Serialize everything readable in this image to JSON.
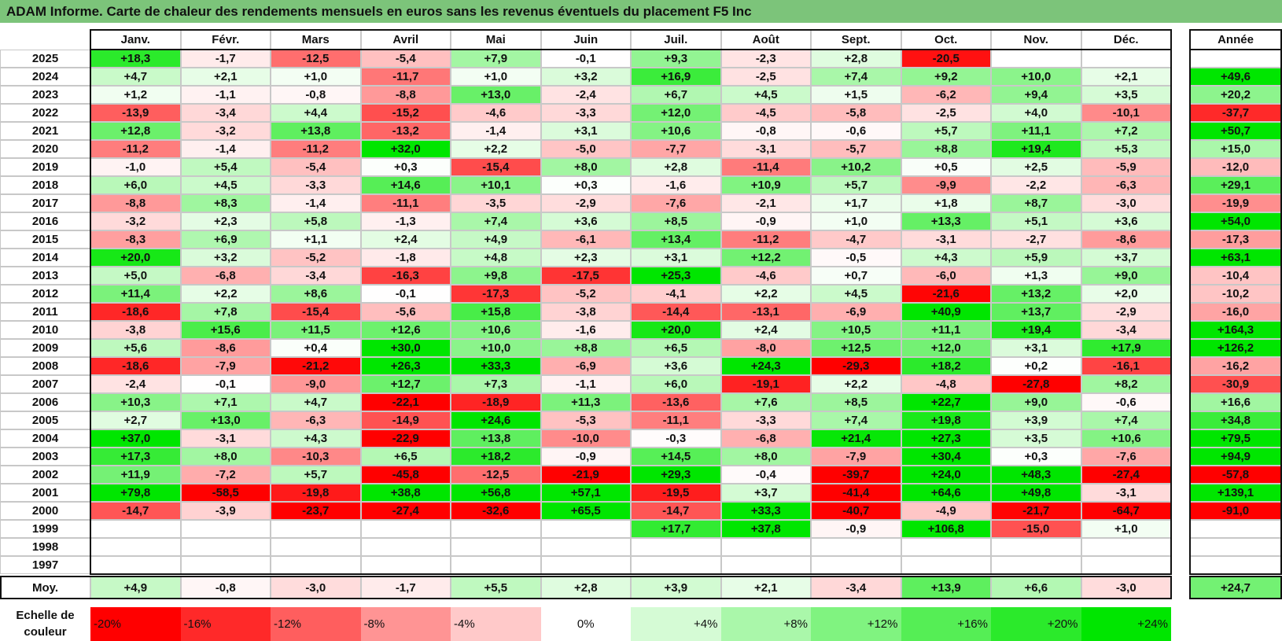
{
  "chart_data": {
    "type": "heatmap",
    "title": "ADAM Informe. Carte de chaleur des rendements mensuels en euros sans les revenus éventuels du placement F5 Inc",
    "columns": [
      "Janv.",
      "Févr.",
      "Mars",
      "Avril",
      "Mai",
      "Juin",
      "Juil.",
      "Août",
      "Sept.",
      "Oct.",
      "Nov.",
      "Déc."
    ],
    "annual_header": "Année",
    "rows": [
      {
        "year": "2025",
        "values": [
          "+18,3",
          "-1,7",
          "-12,5",
          "-5,4",
          "+7,9",
          "-0,1",
          "+9,3",
          "-2,3",
          "+2,8",
          "-20,5",
          "",
          ""
        ],
        "annual": ""
      },
      {
        "year": "2024",
        "values": [
          "+4,7",
          "+2,1",
          "+1,0",
          "-11,7",
          "+1,0",
          "+3,2",
          "+16,9",
          "-2,5",
          "+7,4",
          "+9,2",
          "+10,0",
          "+2,1"
        ],
        "annual": "+49,6"
      },
      {
        "year": "2023",
        "values": [
          "+1,2",
          "-1,1",
          "-0,8",
          "-8,8",
          "+13,0",
          "-2,4",
          "+6,7",
          "+4,5",
          "+1,5",
          "-6,2",
          "+9,4",
          "+3,5"
        ],
        "annual": "+20,2"
      },
      {
        "year": "2022",
        "values": [
          "-13,9",
          "-3,4",
          "+4,4",
          "-15,2",
          "-4,6",
          "-3,3",
          "+12,0",
          "-4,5",
          "-5,8",
          "-2,5",
          "+4,0",
          "-10,1"
        ],
        "annual": "-37,7"
      },
      {
        "year": "2021",
        "values": [
          "+12,8",
          "-3,2",
          "+13,8",
          "-13,2",
          "-1,4",
          "+3,1",
          "+10,6",
          "-0,8",
          "-0,6",
          "+5,7",
          "+11,1",
          "+7,2"
        ],
        "annual": "+50,7"
      },
      {
        "year": "2020",
        "values": [
          "-11,2",
          "-1,4",
          "-11,2",
          "+32,0",
          "+2,2",
          "-5,0",
          "-7,7",
          "-3,1",
          "-5,7",
          "+8,8",
          "+19,4",
          "+5,3"
        ],
        "annual": "+15,0"
      },
      {
        "year": "2019",
        "values": [
          "-1,0",
          "+5,4",
          "-5,4",
          "+0,3",
          "-15,4",
          "+8,0",
          "+2,8",
          "-11,4",
          "+10,2",
          "+0,5",
          "+2,5",
          "-5,9"
        ],
        "annual": "-12,0"
      },
      {
        "year": "2018",
        "values": [
          "+6,0",
          "+4,5",
          "-3,3",
          "+14,6",
          "+10,1",
          "+0,3",
          "-1,6",
          "+10,9",
          "+5,7",
          "-9,9",
          "-2,2",
          "-6,3"
        ],
        "annual": "+29,1"
      },
      {
        "year": "2017",
        "values": [
          "-8,8",
          "+8,3",
          "-1,4",
          "-11,1",
          "-3,5",
          "-2,9",
          "-7,6",
          "-2,1",
          "+1,7",
          "+1,8",
          "+8,7",
          "-3,0"
        ],
        "annual": "-19,9"
      },
      {
        "year": "2016",
        "values": [
          "-3,2",
          "+2,3",
          "+5,8",
          "-1,3",
          "+7,4",
          "+3,6",
          "+8,5",
          "-0,9",
          "+1,0",
          "+13,3",
          "+5,1",
          "+3,6"
        ],
        "annual": "+54,0"
      },
      {
        "year": "2015",
        "values": [
          "-8,3",
          "+6,9",
          "+1,1",
          "+2,4",
          "+4,9",
          "-6,1",
          "+13,4",
          "-11,2",
          "-4,7",
          "-3,1",
          "-2,7",
          "-8,6"
        ],
        "annual": "-17,3"
      },
      {
        "year": "2014",
        "values": [
          "+20,0",
          "+3,2",
          "-5,2",
          "-1,8",
          "+4,8",
          "+2,3",
          "+3,1",
          "+12,2",
          "-0,5",
          "+4,3",
          "+5,9",
          "+3,7"
        ],
        "annual": "+63,1"
      },
      {
        "year": "2013",
        "values": [
          "+5,0",
          "-6,8",
          "-3,4",
          "-16,3",
          "+9,8",
          "-17,5",
          "+25,3",
          "-4,6",
          "+0,7",
          "-6,0",
          "+1,3",
          "+9,0"
        ],
        "annual": "-10,4"
      },
      {
        "year": "2012",
        "values": [
          "+11,4",
          "+2,2",
          "+8,6",
          "-0,1",
          "-17,3",
          "-5,2",
          "-4,1",
          "+2,2",
          "+4,5",
          "-21,6",
          "+13,2",
          "+2,0"
        ],
        "annual": "-10,2"
      },
      {
        "year": "2011",
        "values": [
          "-18,6",
          "+7,8",
          "-15,4",
          "-5,6",
          "+15,8",
          "-3,8",
          "-14,4",
          "-13,1",
          "-6,9",
          "+40,9",
          "+13,7",
          "-2,9"
        ],
        "annual": "-16,0"
      },
      {
        "year": "2010",
        "values": [
          "-3,8",
          "+15,6",
          "+11,5",
          "+12,6",
          "+10,6",
          "-1,6",
          "+20,0",
          "+2,4",
          "+10,5",
          "+11,1",
          "+19,4",
          "-3,4"
        ],
        "annual": "+164,3"
      },
      {
        "year": "2009",
        "values": [
          "+5,6",
          "-8,6",
          "+0,4",
          "+30,0",
          "+10,0",
          "+8,8",
          "+6,5",
          "-8,0",
          "+12,5",
          "+12,0",
          "+3,1",
          "+17,9"
        ],
        "annual": "+126,2"
      },
      {
        "year": "2008",
        "values": [
          "-18,6",
          "-7,9",
          "-21,2",
          "+26,3",
          "+33,3",
          "-6,9",
          "+3,6",
          "+24,3",
          "-29,3",
          "+18,2",
          "+0,2",
          "-16,1"
        ],
        "annual": "-16,2"
      },
      {
        "year": "2007",
        "values": [
          "-2,4",
          "-0,1",
          "-9,0",
          "+12,7",
          "+7,3",
          "-1,1",
          "+6,0",
          "-19,1",
          "+2,2",
          "-4,8",
          "-27,8",
          "+8,2"
        ],
        "annual": "-30,9"
      },
      {
        "year": "2006",
        "values": [
          "+10,3",
          "+7,1",
          "+4,7",
          "-22,1",
          "-18,9",
          "+11,3",
          "-13,6",
          "+7,6",
          "+8,5",
          "+22,7",
          "+9,0",
          "-0,6"
        ],
        "annual": "+16,6"
      },
      {
        "year": "2005",
        "values": [
          "+2,7",
          "+13,0",
          "-6,3",
          "-14,9",
          "+24,6",
          "-5,3",
          "-11,1",
          "-3,3",
          "+7,4",
          "+19,8",
          "+3,9",
          "+7,4"
        ],
        "annual": "+34,8"
      },
      {
        "year": "2004",
        "values": [
          "+37,0",
          "-3,1",
          "+4,3",
          "-22,9",
          "+13,8",
          "-10,0",
          "-0,3",
          "-6,8",
          "+21,4",
          "+27,3",
          "+3,5",
          "+10,6"
        ],
        "annual": "+79,5"
      },
      {
        "year": "2003",
        "values": [
          "+17,3",
          "+8,0",
          "-10,3",
          "+6,5",
          "+18,2",
          "-0,9",
          "+14,5",
          "+8,0",
          "-7,9",
          "+30,4",
          "+0,3",
          "-7,6"
        ],
        "annual": "+94,9"
      },
      {
        "year": "2002",
        "values": [
          "+11,9",
          "-7,2",
          "+5,7",
          "-45,8",
          "-12,5",
          "-21,9",
          "+29,3",
          "-0,4",
          "-39,7",
          "+24,0",
          "+48,3",
          "-27,4"
        ],
        "annual": "-57,8"
      },
      {
        "year": "2001",
        "values": [
          "+79,8",
          "-58,5",
          "-19,8",
          "+38,8",
          "+56,8",
          "+57,1",
          "-19,5",
          "+3,7",
          "-41,4",
          "+64,6",
          "+49,8",
          "-3,1"
        ],
        "annual": "+139,1"
      },
      {
        "year": "2000",
        "values": [
          "-14,7",
          "-3,9",
          "-23,7",
          "-27,4",
          "-32,6",
          "+65,5",
          "-14,7",
          "+33,3",
          "-40,7",
          "-4,9",
          "-21,7",
          "-64,7"
        ],
        "annual": "-91,0"
      },
      {
        "year": "1999",
        "values": [
          "",
          "",
          "",
          "",
          "",
          "",
          "+17,7",
          "+37,8",
          "-0,9",
          "+106,8",
          "-15,0",
          "+1,0"
        ],
        "annual": ""
      },
      {
        "year": "1998",
        "values": [
          "",
          "",
          "",
          "",
          "",
          "",
          "",
          "",
          "",
          "",
          "",
          ""
        ],
        "annual": ""
      },
      {
        "year": "1997",
        "values": [
          "",
          "",
          "",
          "",
          "",
          "",
          "",
          "",
          "",
          "",
          "",
          ""
        ],
        "annual": ""
      }
    ],
    "average": {
      "label": "Moy.",
      "values": [
        "+4,9",
        "-0,8",
        "-3,0",
        "-1,7",
        "+5,5",
        "+2,8",
        "+3,9",
        "+2,1",
        "-3,4",
        "+13,9",
        "+6,6",
        "-3,0"
      ],
      "annual": "+24,7"
    },
    "color_scale": {
      "label": "Echelle de couleur",
      "stops": [
        "-20%",
        "-16%",
        "-12%",
        "-8%",
        "-4%",
        "0%",
        "+4%",
        "+8%",
        "+12%",
        "+16%",
        "+20%",
        "+24%"
      ],
      "negative_color": "#ff0000",
      "neutral_color": "#ffffff",
      "positive_color": "#00e000",
      "title_bar_color": "#7cc47a"
    }
  }
}
